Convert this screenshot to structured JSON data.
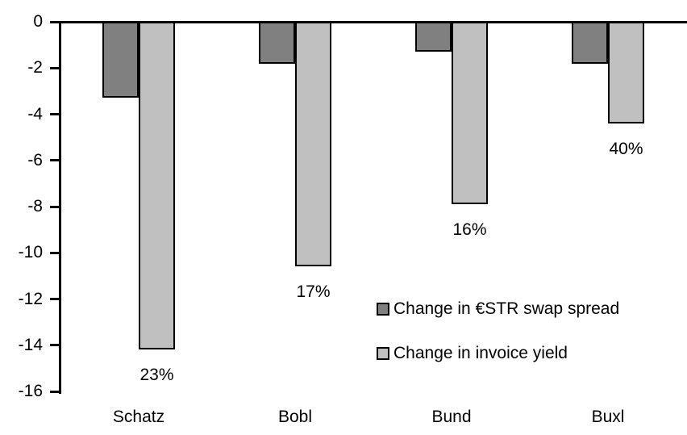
{
  "chart_data": {
    "type": "bar",
    "title": "",
    "xlabel": "",
    "ylabel": "",
    "categories": [
      "Schatz",
      "Bobl",
      "Bund",
      "Buxl"
    ],
    "series": [
      {
        "name": "Change in €STR swap spread",
        "color": "#808080",
        "values": [
          -3.3,
          -1.8,
          -1.3,
          -1.8
        ]
      },
      {
        "name": "Change in invoice yield",
        "color": "#c0c0c0",
        "values": [
          -14.2,
          -10.6,
          -7.9,
          -4.4
        ]
      }
    ],
    "value_labels": {
      "series_index": 1,
      "labels": [
        "23%",
        "17%",
        "16%",
        "40%"
      ]
    },
    "yticks": [
      0,
      -2,
      -4,
      -6,
      -8,
      -10,
      -12,
      -14,
      -16
    ],
    "ylim": [
      -16,
      0
    ],
    "grid": false,
    "legend_position": "inside-right-center",
    "axis_color": "#000000",
    "bar_border_color": "#000000",
    "background": "#ffffff"
  }
}
